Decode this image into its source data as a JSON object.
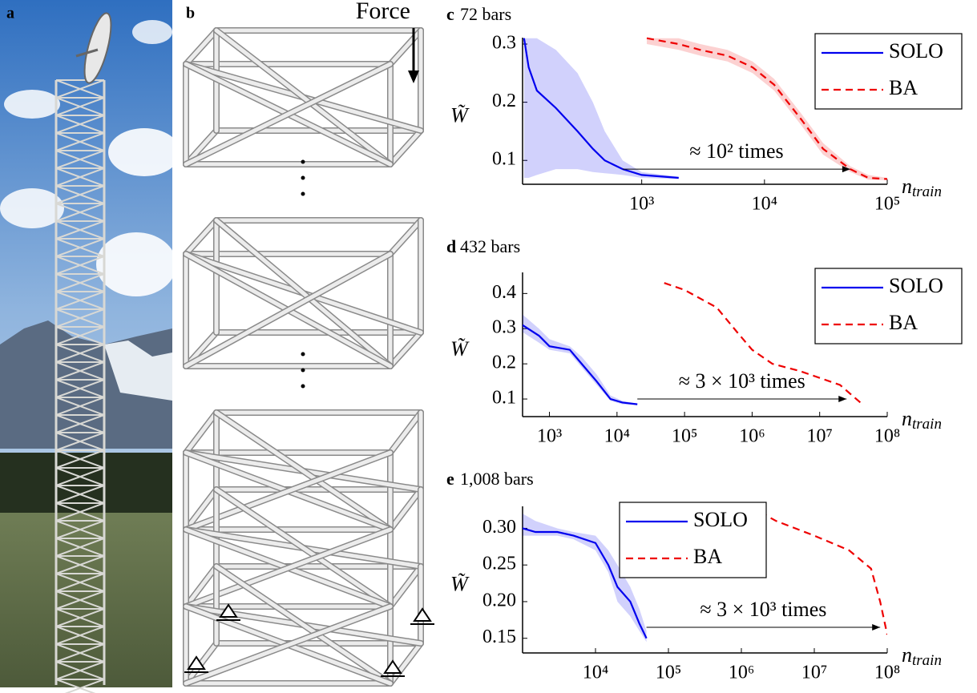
{
  "labels": {
    "a": "a",
    "b": "b",
    "force": "Force"
  },
  "chart_data": [
    {
      "type": "line",
      "panel": "c",
      "title": "72 bars",
      "ylabel": "W̃",
      "xlabel": {
        "base": "n",
        "sub": "train"
      },
      "log_x": true,
      "legend": "upper right",
      "xlim": [
        107,
        100000
      ],
      "ylim": [
        0.059,
        0.311
      ],
      "xticks": [
        {
          "value": 1000,
          "label": "10³"
        },
        {
          "value": 10000,
          "label": "10⁴"
        },
        {
          "value": 100000,
          "label": "10⁵"
        }
      ],
      "yticks": [
        0.1,
        0.2,
        0.3
      ],
      "series": [
        {
          "name": "SOLO",
          "color": "#0000ee",
          "dash": "solid",
          "x": [
            110,
            120,
            140,
            200,
            300,
            400,
            500,
            700,
            1000,
            2000
          ],
          "values": [
            0.31,
            0.26,
            0.22,
            0.19,
            0.15,
            0.12,
            0.1,
            0.085,
            0.075,
            0.07
          ],
          "upper": [
            0.31,
            0.31,
            0.31,
            0.29,
            0.25,
            0.2,
            0.15,
            0.1,
            0.08,
            0.072
          ],
          "lower": [
            0.07,
            0.07,
            0.075,
            0.085,
            0.085,
            0.08,
            0.078,
            0.075,
            0.07,
            0.068
          ]
        },
        {
          "name": "BA",
          "color": "#ee0000",
          "dash": "dashed",
          "x": [
            1100,
            2000,
            3000,
            5000,
            8000,
            12000,
            20000,
            30000,
            50000,
            70000,
            100000
          ],
          "values": [
            0.31,
            0.3,
            0.29,
            0.28,
            0.26,
            0.23,
            0.17,
            0.12,
            0.085,
            0.07,
            0.068
          ],
          "upper": [
            0.31,
            0.31,
            0.3,
            0.29,
            0.27,
            0.24,
            0.18,
            0.13,
            0.09,
            0.075,
            0.07
          ],
          "lower": [
            0.3,
            0.29,
            0.28,
            0.27,
            0.25,
            0.22,
            0.16,
            0.11,
            0.08,
            0.067,
            0.066
          ]
        }
      ],
      "annotation": {
        "text": "≈ 10² times",
        "x": [
          700,
          50000
        ],
        "y": 0.085
      }
    },
    {
      "type": "line",
      "panel": "d",
      "title": "432 bars",
      "ylabel": "W̃",
      "xlabel": {
        "base": "n",
        "sub": "train"
      },
      "log_x": true,
      "legend": "upper right",
      "xlim": [
        400,
        100000000
      ],
      "ylim": [
        0.05,
        0.46
      ],
      "xticks": [
        {
          "value": 1000,
          "label": "10³"
        },
        {
          "value": 10000,
          "label": "10⁴"
        },
        {
          "value": 100000,
          "label": "10⁵"
        },
        {
          "value": 1000000,
          "label": "10⁶"
        },
        {
          "value": 10000000,
          "label": "10⁷"
        },
        {
          "value": 100000000,
          "label": "10⁸"
        }
      ],
      "yticks": [
        0.1,
        0.2,
        0.3,
        0.4
      ],
      "series": [
        {
          "name": "SOLO",
          "color": "#0000ee",
          "dash": "solid",
          "x": [
            400,
            700,
            1000,
            2000,
            3000,
            5000,
            8000,
            12000,
            20000
          ],
          "values": [
            0.31,
            0.28,
            0.25,
            0.24,
            0.2,
            0.15,
            0.1,
            0.09,
            0.085
          ],
          "upper": [
            0.34,
            0.3,
            0.27,
            0.25,
            0.22,
            0.17,
            0.11,
            0.095,
            0.087
          ],
          "lower": [
            0.29,
            0.26,
            0.24,
            0.23,
            0.19,
            0.14,
            0.095,
            0.085,
            0.083
          ]
        },
        {
          "name": "BA",
          "color": "#ee0000",
          "dash": "dashed",
          "x": [
            50000,
            100000,
            300000,
            600000,
            1000000,
            2000000,
            5000000,
            10000000,
            20000000,
            40000000
          ],
          "values": [
            0.43,
            0.41,
            0.36,
            0.29,
            0.24,
            0.2,
            0.18,
            0.16,
            0.14,
            0.09
          ]
        }
      ],
      "annotation": {
        "text": "≈ 3 × 10³ times",
        "x": [
          20000,
          25000000
        ],
        "y": 0.1
      }
    },
    {
      "type": "line",
      "panel": "e",
      "title": "1,008 bars",
      "ylabel": "W̃",
      "xlabel": {
        "base": "n",
        "sub": "train"
      },
      "log_x": true,
      "legend": "upper center",
      "xlim": [
        1000,
        100000000
      ],
      "ylim": [
        0.13,
        0.33
      ],
      "xticks": [
        {
          "value": 10000,
          "label": "10⁴"
        },
        {
          "value": 100000,
          "label": "10⁵"
        },
        {
          "value": 1000000,
          "label": "10⁶"
        },
        {
          "value": 10000000,
          "label": "10⁷"
        },
        {
          "value": 100000000,
          "label": "10⁸"
        }
      ],
      "yticks": [
        {
          "value": 0.15,
          "label": "0.15"
        },
        {
          "value": 0.2,
          "label": "0.20"
        },
        {
          "value": 0.25,
          "label": "0.25"
        },
        {
          "value": 0.3,
          "label": "0.30"
        }
      ],
      "series": [
        {
          "name": "SOLO",
          "color": "#0000ee",
          "dash": "solid",
          "x": [
            1000,
            1500,
            3000,
            5000,
            10000,
            15000,
            20000,
            30000,
            40000,
            50000
          ],
          "values": [
            0.3,
            0.295,
            0.295,
            0.29,
            0.28,
            0.25,
            0.22,
            0.2,
            0.17,
            0.15
          ],
          "upper": [
            0.32,
            0.31,
            0.3,
            0.295,
            0.29,
            0.27,
            0.25,
            0.22,
            0.19,
            0.16
          ],
          "lower": [
            0.29,
            0.29,
            0.29,
            0.285,
            0.27,
            0.24,
            0.2,
            0.18,
            0.16,
            0.145
          ]
        },
        {
          "name": "BA",
          "color": "#ee0000",
          "dash": "dashed",
          "x": [
            1300000,
            3000000,
            10000000,
            30000000,
            60000000,
            80000000,
            100000000
          ],
          "values": [
            0.33,
            0.31,
            0.29,
            0.27,
            0.245,
            0.2,
            0.155
          ]
        }
      ],
      "annotation": {
        "text": "≈ 3 × 10³ times",
        "x": [
          50000,
          80000000
        ],
        "y": 0.165
      }
    }
  ]
}
